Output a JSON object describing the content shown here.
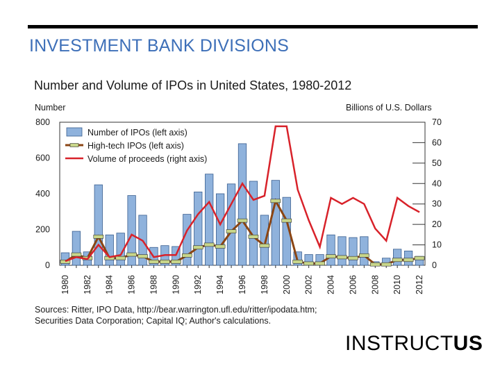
{
  "slide": {
    "title": "INVESTMENT BANK DIVISIONS",
    "logo_regular": "INSTRUCT",
    "logo_bold": "US"
  },
  "colors": {
    "bar_fill": "#8fb2dc",
    "bar_stroke": "#3a5f8f",
    "hightech_line": "#8b4513",
    "hightech_marker": "#c8d68a",
    "volume_line": "#d8222a",
    "title_blue": "#3d6fb8"
  },
  "sources": {
    "line1": "Sources: Ritter, IPO Data, http://bear.warrington.ufl.edu/ritter/ipodata.htm;",
    "line2": "Securities Data Corporation; Capital IQ; Author's calculations."
  },
  "chart_data": {
    "type": "bar",
    "title": "Number and Volume of IPOs in United States, 1980-2012",
    "ylabel_left": "Number",
    "ylabel_right": "Billions of U.S. Dollars",
    "ylim_left": [
      0,
      800
    ],
    "ylim_right": [
      0,
      70
    ],
    "left_ticks": [
      "800",
      "600",
      "400",
      "200",
      "0"
    ],
    "right_ticks": [
      "70",
      "60",
      "50",
      "40",
      "30",
      "20",
      "10",
      "0"
    ],
    "x": [
      1980,
      1981,
      1982,
      1983,
      1984,
      1985,
      1986,
      1987,
      1988,
      1989,
      1990,
      1991,
      1992,
      1993,
      1994,
      1995,
      1996,
      1997,
      1998,
      1999,
      2000,
      2001,
      2002,
      2003,
      2004,
      2005,
      2006,
      2007,
      2008,
      2009,
      2010,
      2011,
      2012
    ],
    "x_tick_labels": [
      "1980",
      "1982",
      "1984",
      "1986",
      "1988",
      "1990",
      "1992",
      "1994",
      "1996",
      "1998",
      "2000",
      "2002",
      "2004",
      "2006",
      "2008",
      "2010",
      "2012"
    ],
    "legend_placement": "top-left",
    "series": [
      {
        "name": "Number of IPOs (left axis)",
        "axis": "left",
        "kind": "bar",
        "values": [
          70,
          190,
          75,
          450,
          170,
          180,
          390,
          280,
          100,
          110,
          105,
          285,
          410,
          510,
          400,
          455,
          680,
          470,
          280,
          475,
          380,
          75,
          60,
          60,
          170,
          160,
          155,
          160,
          20,
          40,
          90,
          80,
          50
        ]
      },
      {
        "name": "High-tech IPOs (left axis)",
        "axis": "left",
        "kind": "line",
        "values": [
          20,
          60,
          40,
          160,
          40,
          40,
          60,
          50,
          20,
          20,
          20,
          55,
          100,
          115,
          105,
          190,
          250,
          160,
          110,
          360,
          250,
          20,
          10,
          10,
          50,
          45,
          40,
          55,
          5,
          5,
          30,
          30,
          40
        ]
      },
      {
        "name": "Volume of proceeds (right axis)",
        "axis": "right",
        "kind": "line",
        "values": [
          2,
          4,
          3,
          10,
          4,
          5,
          15,
          12,
          4,
          5,
          5,
          17,
          25,
          31,
          20,
          30,
          40,
          32,
          34,
          68,
          68,
          37,
          22,
          9,
          33,
          30,
          33,
          30,
          18,
          12,
          33,
          29,
          26
        ]
      }
    ]
  }
}
